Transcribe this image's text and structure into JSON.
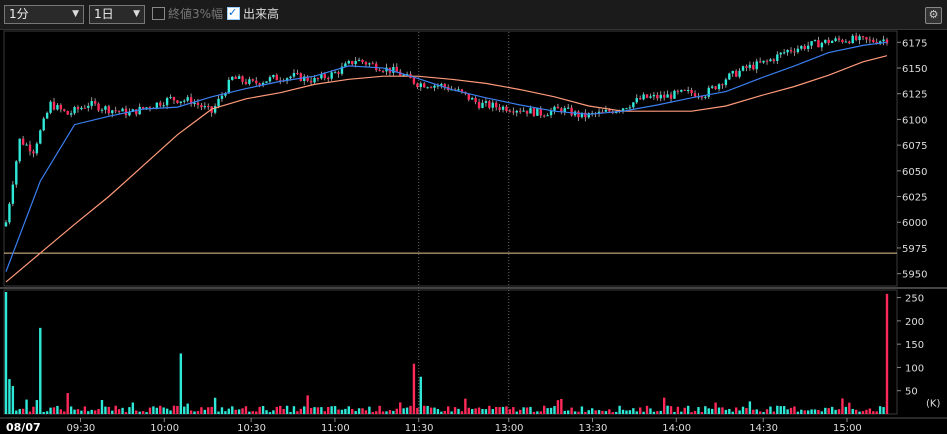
{
  "toolbar": {
    "interval": "1分",
    "period": "1日",
    "option1": "終値3%幅",
    "option1_checked": false,
    "option2": "出来高",
    "option2_checked": true
  },
  "colors": {
    "up": "#2ee8d8",
    "down": "#ff2a5a",
    "ma_short": "#3a7ff0",
    "ma_long": "#ff9a7a",
    "ref_line": "#e8c890",
    "wick": "#b8b8b8"
  },
  "icons": [
    "chevron-down-icon",
    "checkbox-icon",
    "gear-icon"
  ],
  "chart_data": {
    "type": "candlestick",
    "date_label": "08/07",
    "x_ticks": [
      "09:30",
      "10:00",
      "10:30",
      "11:00",
      "11:30",
      "13:00",
      "13:30",
      "14:00",
      "14:30",
      "15:00"
    ],
    "price_axis": {
      "ticks": [
        5950,
        5975,
        6000,
        6025,
        6050,
        6075,
        6100,
        6125,
        6150,
        6175
      ],
      "ylim": [
        5938,
        6185
      ]
    },
    "volume_axis": {
      "ticks": [
        50,
        100,
        150,
        200,
        250
      ],
      "unit": "(K)",
      "ylim": [
        0,
        262
      ]
    },
    "reference_line": 5970,
    "close_path": [
      {
        "i": 0,
        "p": 6000
      },
      {
        "i": 4,
        "p": 6080
      },
      {
        "i": 8,
        "p": 6070
      },
      {
        "i": 13,
        "p": 6115
      },
      {
        "i": 18,
        "p": 6105
      },
      {
        "i": 24,
        "p": 6115
      },
      {
        "i": 30,
        "p": 6110
      },
      {
        "i": 36,
        "p": 6106
      },
      {
        "i": 42,
        "p": 6113
      },
      {
        "i": 48,
        "p": 6120
      },
      {
        "i": 54,
        "p": 6118
      },
      {
        "i": 60,
        "p": 6107
      },
      {
        "i": 66,
        "p": 6140
      },
      {
        "i": 72,
        "p": 6135
      },
      {
        "i": 78,
        "p": 6140
      },
      {
        "i": 84,
        "p": 6142
      },
      {
        "i": 90,
        "p": 6138
      },
      {
        "i": 96,
        "p": 6145
      },
      {
        "i": 102,
        "p": 6158
      },
      {
        "i": 108,
        "p": 6152
      },
      {
        "i": 114,
        "p": 6146
      },
      {
        "i": 120,
        "p": 6135
      },
      {
        "i": 127,
        "p": 6133
      },
      {
        "i": 132,
        "p": 6127
      },
      {
        "i": 138,
        "p": 6115
      },
      {
        "i": 144,
        "p": 6112
      },
      {
        "i": 150,
        "p": 6110
      },
      {
        "i": 156,
        "p": 6106
      },
      {
        "i": 162,
        "p": 6110
      },
      {
        "i": 168,
        "p": 6103
      },
      {
        "i": 174,
        "p": 6106
      },
      {
        "i": 180,
        "p": 6112
      },
      {
        "i": 186,
        "p": 6121
      },
      {
        "i": 192,
        "p": 6122
      },
      {
        "i": 198,
        "p": 6126
      },
      {
        "i": 204,
        "p": 6125
      },
      {
        "i": 210,
        "p": 6140
      },
      {
        "i": 216,
        "p": 6150
      },
      {
        "i": 222,
        "p": 6156
      },
      {
        "i": 228,
        "p": 6167
      },
      {
        "i": 234,
        "p": 6172
      },
      {
        "i": 240,
        "p": 6176
      },
      {
        "i": 246,
        "p": 6178
      },
      {
        "i": 252,
        "p": 6176
      },
      {
        "i": 257,
        "p": 6178
      }
    ],
    "ma_short": [
      {
        "i": 0,
        "p": 5952
      },
      {
        "i": 10,
        "p": 6040
      },
      {
        "i": 20,
        "p": 6095
      },
      {
        "i": 30,
        "p": 6103
      },
      {
        "i": 40,
        "p": 6110
      },
      {
        "i": 50,
        "p": 6112
      },
      {
        "i": 60,
        "p": 6122
      },
      {
        "i": 70,
        "p": 6130
      },
      {
        "i": 80,
        "p": 6137
      },
      {
        "i": 90,
        "p": 6142
      },
      {
        "i": 100,
        "p": 6152
      },
      {
        "i": 110,
        "p": 6150
      },
      {
        "i": 120,
        "p": 6140
      },
      {
        "i": 130,
        "p": 6129
      },
      {
        "i": 140,
        "p": 6121
      },
      {
        "i": 150,
        "p": 6114
      },
      {
        "i": 160,
        "p": 6108
      },
      {
        "i": 170,
        "p": 6105
      },
      {
        "i": 180,
        "p": 6108
      },
      {
        "i": 190,
        "p": 6114
      },
      {
        "i": 200,
        "p": 6121
      },
      {
        "i": 210,
        "p": 6127
      },
      {
        "i": 220,
        "p": 6140
      },
      {
        "i": 230,
        "p": 6152
      },
      {
        "i": 240,
        "p": 6165
      },
      {
        "i": 250,
        "p": 6172
      },
      {
        "i": 257,
        "p": 6175
      }
    ],
    "ma_long": [
      {
        "i": 0,
        "p": 5942
      },
      {
        "i": 10,
        "p": 5970
      },
      {
        "i": 20,
        "p": 5998
      },
      {
        "i": 30,
        "p": 6025
      },
      {
        "i": 40,
        "p": 6055
      },
      {
        "i": 50,
        "p": 6085
      },
      {
        "i": 60,
        "p": 6110
      },
      {
        "i": 70,
        "p": 6120
      },
      {
        "i": 80,
        "p": 6126
      },
      {
        "i": 90,
        "p": 6134
      },
      {
        "i": 100,
        "p": 6139
      },
      {
        "i": 110,
        "p": 6142
      },
      {
        "i": 120,
        "p": 6142
      },
      {
        "i": 130,
        "p": 6139
      },
      {
        "i": 140,
        "p": 6135
      },
      {
        "i": 150,
        "p": 6129
      },
      {
        "i": 160,
        "p": 6122
      },
      {
        "i": 170,
        "p": 6113
      },
      {
        "i": 180,
        "p": 6108
      },
      {
        "i": 190,
        "p": 6108
      },
      {
        "i": 200,
        "p": 6108
      },
      {
        "i": 210,
        "p": 6113
      },
      {
        "i": 220,
        "p": 6123
      },
      {
        "i": 230,
        "p": 6132
      },
      {
        "i": 240,
        "p": 6143
      },
      {
        "i": 250,
        "p": 6156
      },
      {
        "i": 257,
        "p": 6162
      }
    ],
    "volume_spikes": [
      {
        "i": 0,
        "v": 262
      },
      {
        "i": 1,
        "v": 75
      },
      {
        "i": 2,
        "v": 60
      },
      {
        "i": 10,
        "v": 185
      },
      {
        "i": 9,
        "v": 30
      },
      {
        "i": 18,
        "v": 45
      },
      {
        "i": 51,
        "v": 130
      },
      {
        "i": 88,
        "v": 40
      },
      {
        "i": 119,
        "v": 108
      },
      {
        "i": 121,
        "v": 80
      },
      {
        "i": 257,
        "v": 258
      }
    ]
  }
}
